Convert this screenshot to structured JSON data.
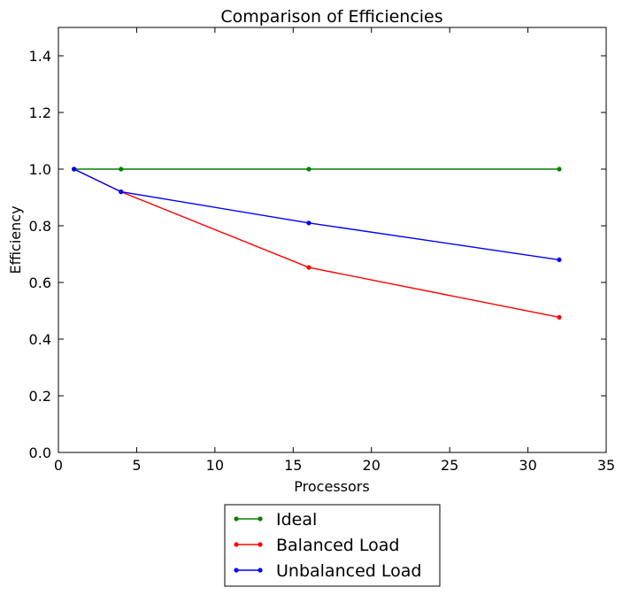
{
  "chart_data": {
    "type": "line",
    "title": "Comparison of Efficiencies",
    "xlabel": "Processors",
    "ylabel": "Efficiency",
    "xlim": [
      0,
      35
    ],
    "ylim": [
      0,
      1.5
    ],
    "xticks": [
      0,
      5,
      10,
      15,
      20,
      25,
      30,
      35
    ],
    "xtick_labels": [
      "0",
      "5",
      "10",
      "15",
      "20",
      "25",
      "30",
      "35"
    ],
    "yticks": [
      0,
      0.2,
      0.4,
      0.6,
      0.8,
      1.0,
      1.2,
      1.4
    ],
    "ytick_labels": [
      "0.0",
      "0.2",
      "0.4",
      "0.6",
      "0.8",
      "1.0",
      "1.2",
      "1.4"
    ],
    "grid": false,
    "legend_position": "bottom-center, outside plot",
    "series": [
      {
        "name": "Ideal",
        "color": "#008000",
        "x": [
          1,
          4,
          16,
          32
        ],
        "y": [
          1.0,
          1.0,
          1.0,
          1.0
        ]
      },
      {
        "name": "Balanced Load",
        "color": "#ff0000",
        "x": [
          1,
          4,
          16,
          32
        ],
        "y": [
          1.0,
          0.92,
          0.653,
          0.477
        ]
      },
      {
        "name": "Unbalanced Load",
        "color": "#0000ff",
        "x": [
          1,
          4,
          16,
          32
        ],
        "y": [
          1.0,
          0.92,
          0.81,
          0.68
        ]
      }
    ]
  }
}
